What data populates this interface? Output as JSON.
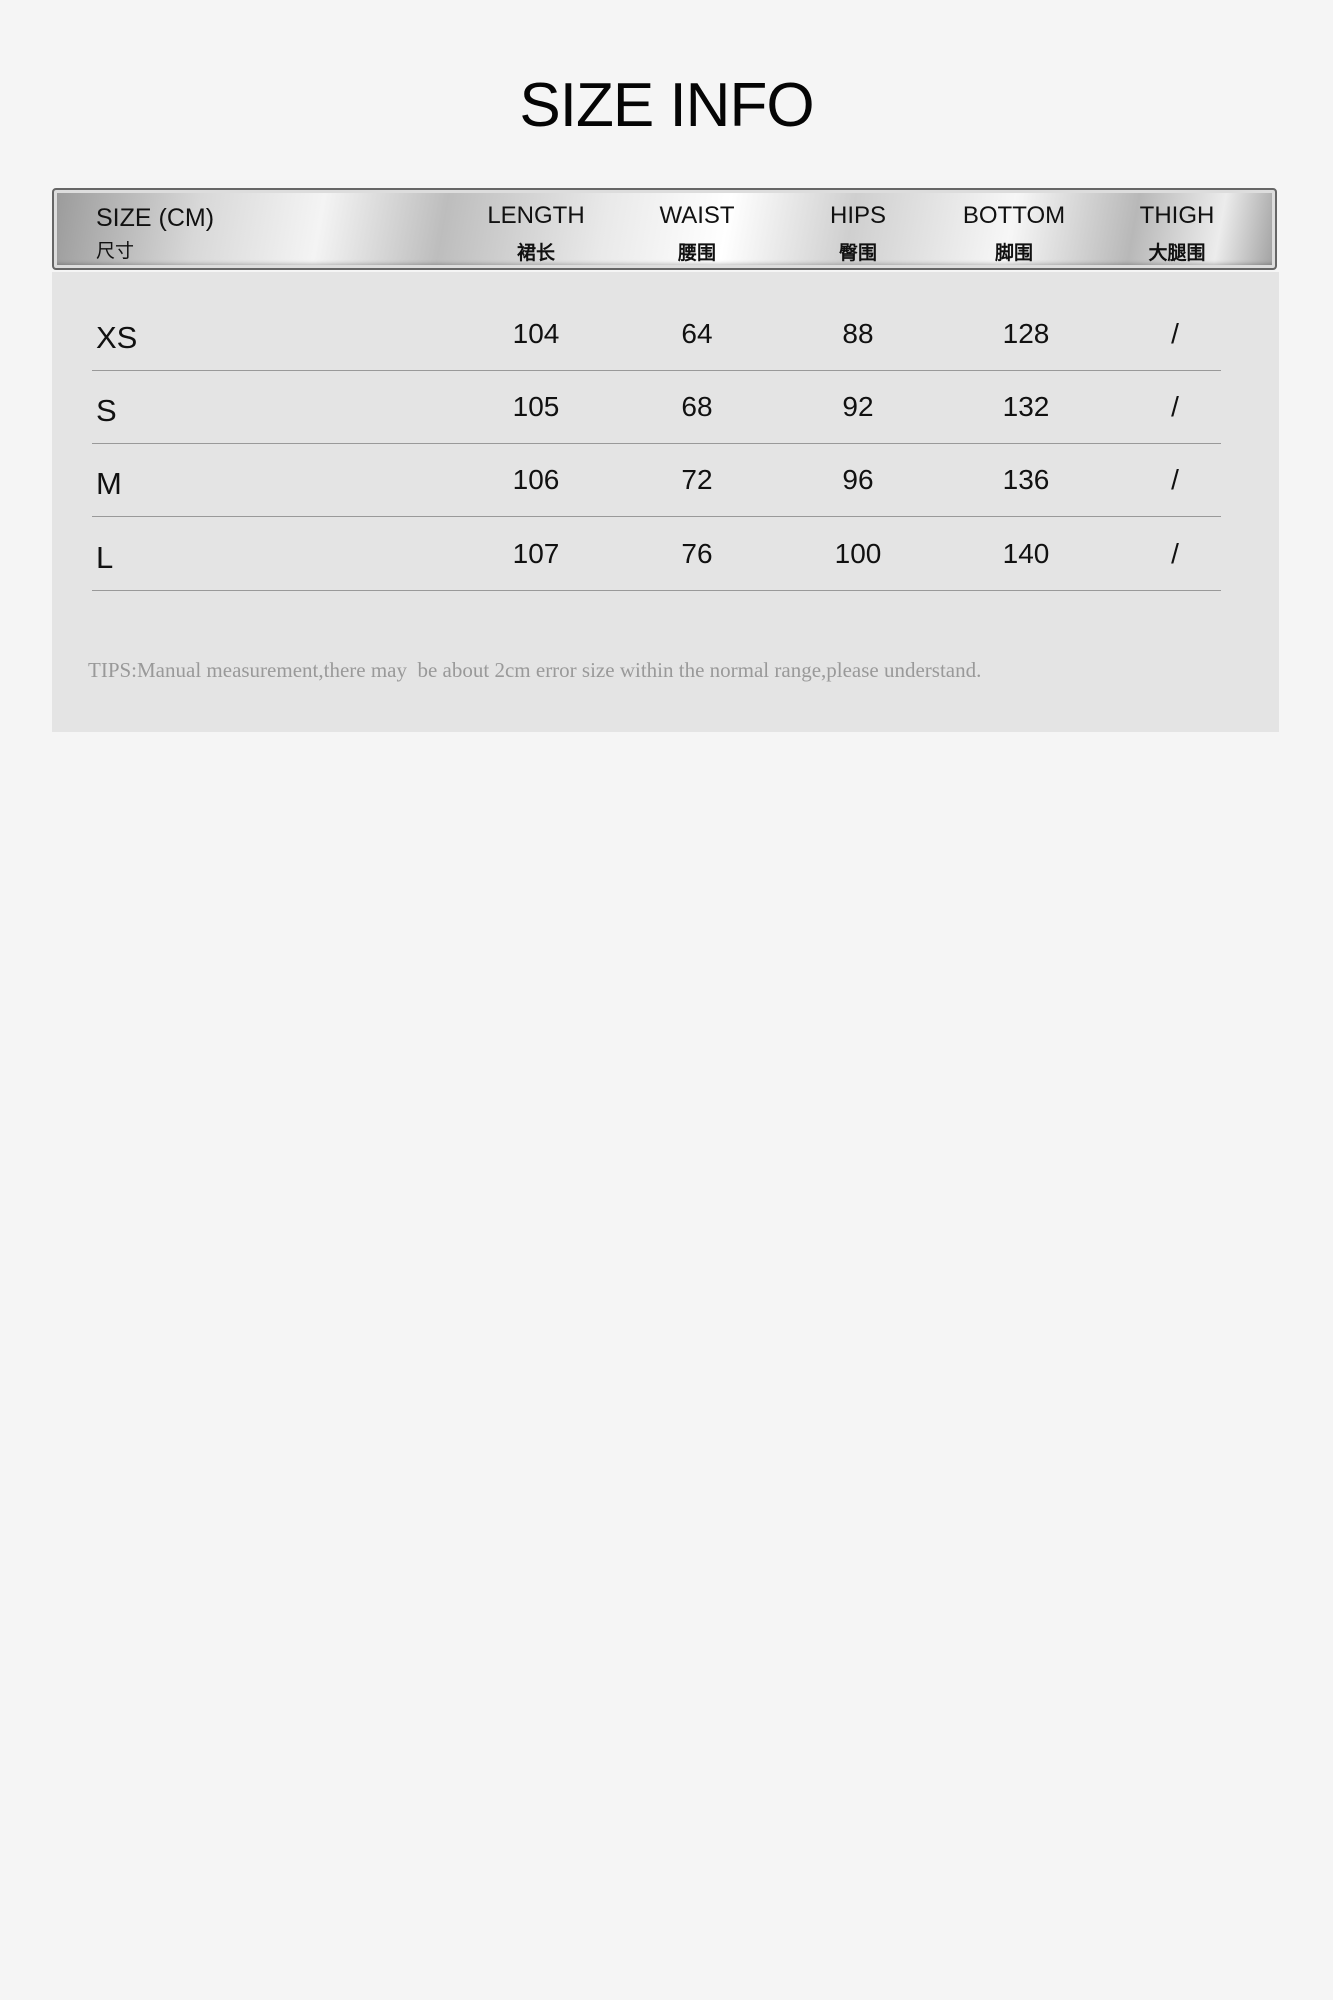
{
  "title": "SIZE INFO",
  "header": {
    "size_label": "SIZE (CM)",
    "size_label_zh": "尺寸",
    "columns": [
      {
        "en": "LENGTH",
        "zh": "裙长"
      },
      {
        "en": "WAIST",
        "zh": "腰围"
      },
      {
        "en": "HIPS",
        "zh": "臀围"
      },
      {
        "en": "BOTTOM",
        "zh": "脚围"
      },
      {
        "en": "THIGH",
        "zh": "大腿围"
      }
    ]
  },
  "rows": [
    {
      "size": "XS",
      "values": [
        "104",
        "64",
        "88",
        "128",
        "/"
      ]
    },
    {
      "size": "S",
      "values": [
        "105",
        "68",
        "92",
        "132",
        "/"
      ]
    },
    {
      "size": "M",
      "values": [
        "106",
        "72",
        "96",
        "136",
        "/"
      ]
    },
    {
      "size": "L",
      "values": [
        "107",
        "76",
        "100",
        "140",
        "/"
      ]
    }
  ],
  "tips": "TIPS:Manual measurement,there may  be about 2cm error size within the normal range,please understand."
}
